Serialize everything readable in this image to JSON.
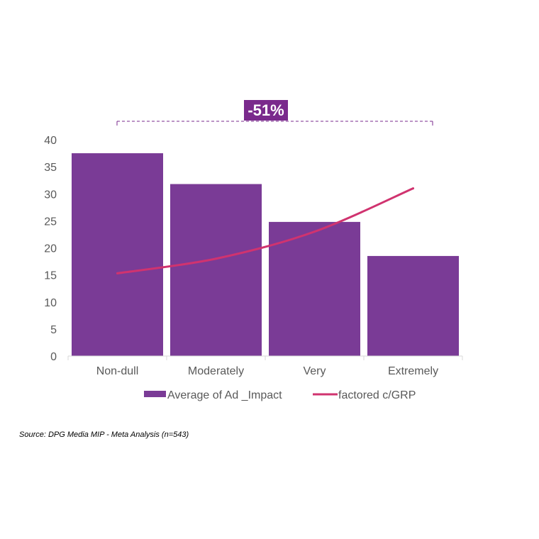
{
  "chart_data": {
    "type": "bar",
    "categories": [
      "Non-dull",
      "Moderately",
      "Very",
      "Extremely"
    ],
    "series": [
      {
        "name": "Average of Ad _Impact",
        "kind": "bar",
        "color": "#7a3b96",
        "values": [
          37.5,
          31.8,
          24.8,
          18.5
        ]
      },
      {
        "name": "factored c/GRP",
        "kind": "line",
        "color": "#d0336f",
        "values": [
          15.3,
          18.0,
          23.0,
          31.0
        ]
      }
    ],
    "ylim": [
      0,
      40
    ],
    "yticks": [
      "0",
      "5",
      "10",
      "15",
      "20",
      "25",
      "30",
      "35",
      "40"
    ],
    "callout": {
      "text": "-51%",
      "color": "#7a2a8c"
    },
    "legend_position": "bottom"
  },
  "source_note": "Source: DPG Media MIP - Meta Analysis (n=543)"
}
